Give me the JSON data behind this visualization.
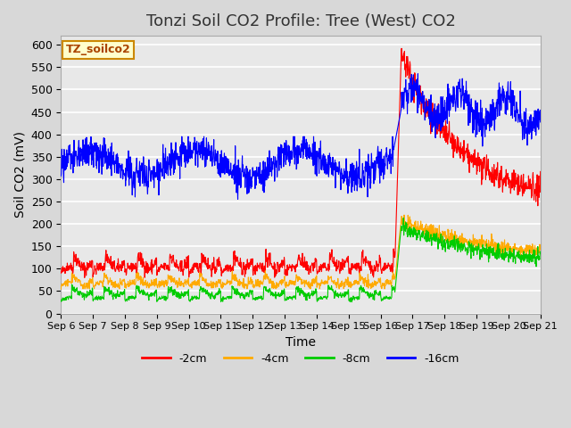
{
  "title": "Tonzi Soil CO2 Profile: Tree (West) CO2",
  "xlabel": "Time",
  "ylabel": "Soil CO2 (mV)",
  "legend_label": "TZ_soilco2",
  "ylim": [
    0,
    620
  ],
  "yticks": [
    0,
    50,
    100,
    150,
    200,
    250,
    300,
    350,
    400,
    450,
    500,
    550,
    600
  ],
  "colors": {
    "2cm": "#ff0000",
    "4cm": "#ffaa00",
    "8cm": "#00cc00",
    "16cm": "#0000ff"
  },
  "background_color": "#e8e8e8",
  "axes_bg_color": "#e8e8e8",
  "grid_color": "#ffffff",
  "num_days": 16,
  "start_day": 6,
  "end_day": 21,
  "spike_day": 10.5,
  "title_fontsize": 13,
  "label_fontsize": 10,
  "tick_fontsize": 9
}
